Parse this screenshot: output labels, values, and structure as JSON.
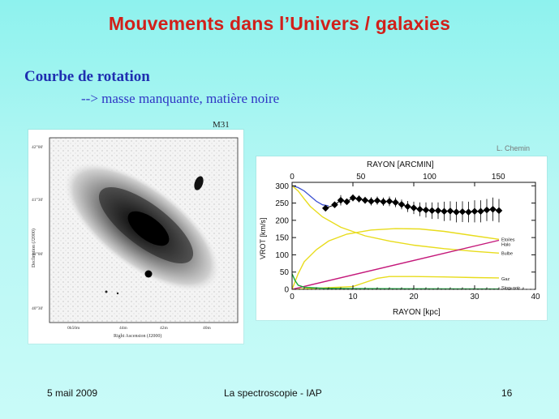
{
  "slide": {
    "title": "Mouvements dans l’Univers / galaxies",
    "subtitle": "Courbe de rotation",
    "bullet": "--> masse manquante, matière noire",
    "image_label": "M31",
    "credit": "L. Chemin",
    "footer": {
      "date": "5 mail 2009",
      "center": "La spectroscopie - IAP",
      "page": "16"
    },
    "colors": {
      "title": "#d1201a",
      "subtitle": "#1f2fb0",
      "bullet": "#2f35c4"
    }
  },
  "m31_image": {
    "y_label": "Declination (J2000)",
    "x_label": "Right Ascension (J2000)",
    "y_ticks": [
      "42°00'",
      "41°30'",
      "41°00'",
      "40°30'"
    ],
    "x_ticks": [
      "0h50m",
      "44m",
      "42m",
      "40m"
    ]
  },
  "chart_data": {
    "type": "line",
    "xlabel": "RAYON [kpc]",
    "ylabel": "VROT [km/s]",
    "top_xlabel": "RAYON [ARCMIN]",
    "xlim": [
      0,
      40
    ],
    "ylim": [
      0,
      310
    ],
    "x_ticks": [
      "0",
      "10",
      "20",
      "30",
      "40"
    ],
    "y_ticks": [
      "0",
      "50",
      "100",
      "150",
      "200",
      "250",
      "300"
    ],
    "top_ticks": [
      "0",
      "50",
      "100",
      "150"
    ],
    "top_tick_values": [
      0,
      11.3,
      22.6,
      33.9
    ],
    "legend_labels": [
      {
        "text": "Etoiles",
        "y": 145
      },
      {
        "text": "Halo",
        "y": 130
      },
      {
        "text": "Bulbe",
        "y": 105
      },
      {
        "text": "Gaz",
        "y": 30
      },
      {
        "text": "Sing. noir",
        "y": 5
      }
    ],
    "series": [
      {
        "kind": "model",
        "color": "#3a4fd0",
        "points": [
          [
            0,
            300
          ],
          [
            1,
            295
          ],
          [
            2,
            285
          ],
          [
            3,
            270
          ],
          [
            4,
            255
          ],
          [
            5,
            245
          ],
          [
            6,
            242
          ]
        ]
      },
      {
        "kind": "component",
        "color": "#e8dc1c",
        "points": [
          [
            0,
            300
          ],
          [
            1,
            285
          ],
          [
            2,
            262
          ],
          [
            3,
            240
          ],
          [
            5,
            210
          ],
          [
            8,
            180
          ],
          [
            12,
            155
          ],
          [
            16,
            140
          ],
          [
            20,
            128
          ],
          [
            25,
            118
          ],
          [
            30,
            110
          ],
          [
            34,
            105
          ]
        ]
      },
      {
        "kind": "component",
        "color": "#e8dc1c",
        "points": [
          [
            0,
            0
          ],
          [
            1,
            45
          ],
          [
            2,
            80
          ],
          [
            4,
            115
          ],
          [
            6,
            140
          ],
          [
            9,
            160
          ],
          [
            13,
            172
          ],
          [
            17,
            176
          ],
          [
            21,
            175
          ],
          [
            25,
            168
          ],
          [
            30,
            155
          ],
          [
            34,
            145
          ]
        ]
      },
      {
        "kind": "component",
        "color": "#e8dc1c",
        "points": [
          [
            0,
            0
          ],
          [
            6,
            5
          ],
          [
            10,
            8
          ],
          [
            12,
            20
          ],
          [
            14,
            32
          ],
          [
            16,
            37
          ],
          [
            20,
            37
          ],
          [
            25,
            36
          ],
          [
            30,
            34
          ],
          [
            34,
            33
          ]
        ]
      },
      {
        "kind": "component",
        "color": "#c4187a",
        "points": [
          [
            0,
            0
          ],
          [
            34,
            142
          ]
        ]
      },
      {
        "kind": "component",
        "color": "#19a83c",
        "points": [
          [
            0,
            45
          ],
          [
            0.5,
            25
          ],
          [
            1,
            12
          ],
          [
            2,
            6
          ],
          [
            5,
            3
          ],
          [
            10,
            2
          ],
          [
            34,
            1
          ]
        ]
      },
      {
        "kind": "observed",
        "color": "#000000",
        "points": [
          [
            5.5,
            235
          ],
          [
            7,
            245
          ],
          [
            8,
            258
          ],
          [
            9,
            254
          ],
          [
            10,
            265
          ],
          [
            11,
            262
          ],
          [
            12,
            258
          ],
          [
            13,
            255
          ],
          [
            14,
            257
          ],
          [
            15,
            254
          ],
          [
            16,
            255
          ],
          [
            17,
            252
          ],
          [
            18,
            246
          ],
          [
            19,
            240
          ],
          [
            20,
            236
          ],
          [
            21,
            232
          ],
          [
            22,
            230
          ],
          [
            23,
            228
          ],
          [
            24,
            228
          ],
          [
            25,
            226
          ],
          [
            26,
            227
          ],
          [
            27,
            224
          ],
          [
            28,
            225
          ],
          [
            29,
            224
          ],
          [
            30,
            226
          ],
          [
            31,
            226
          ],
          [
            32,
            230
          ],
          [
            33,
            232
          ],
          [
            34,
            228
          ]
        ],
        "errors": [
          0,
          8,
          15,
          8,
          10,
          10,
          10,
          12,
          12,
          12,
          14,
          14,
          14,
          16,
          18,
          20,
          22,
          24,
          24,
          28,
          28,
          30,
          30,
          30,
          32,
          32,
          32,
          34,
          34
        ]
      }
    ]
  }
}
